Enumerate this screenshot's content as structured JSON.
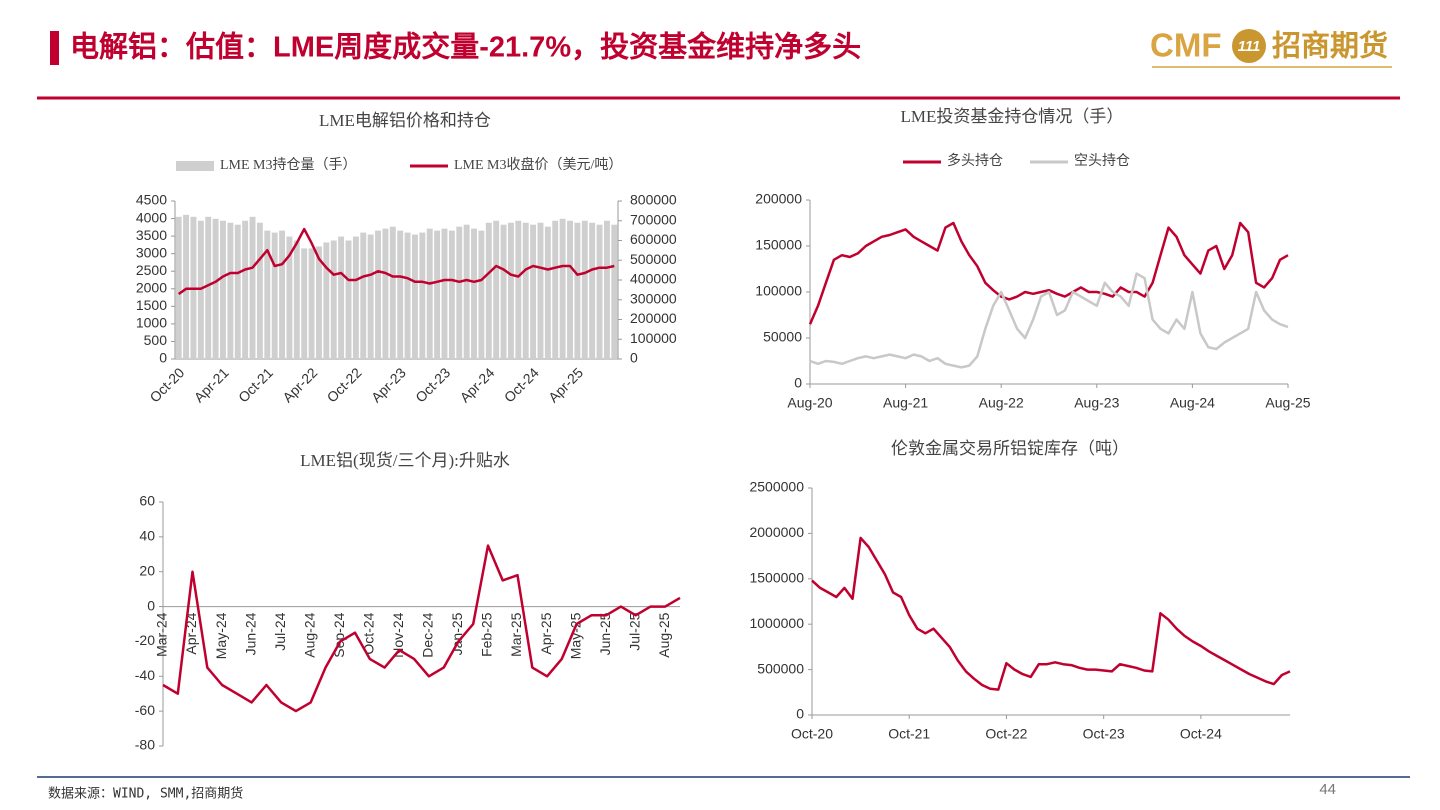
{
  "header": {
    "title": "电解铝：估值：LME周度成交量-21.7%，投资基金维持净多头",
    "logo_text": "CMF",
    "logo_mark": "111",
    "company": "招商期货"
  },
  "footer": {
    "source": "数据来源：WIND, SMM,招商期货",
    "page": "44"
  },
  "chart_data": [
    {
      "type": "combo",
      "title": "LME电解铝价格和持仓",
      "categories": [
        "Oct-20",
        null,
        null,
        null,
        null,
        null,
        "Apr-21",
        null,
        null,
        null,
        null,
        null,
        "Oct-21",
        null,
        null,
        null,
        null,
        null,
        "Apr-22",
        null,
        null,
        null,
        null,
        null,
        "Oct-22",
        null,
        null,
        null,
        null,
        null,
        "Apr-23",
        null,
        null,
        null,
        null,
        null,
        "Oct-23",
        null,
        null,
        null,
        null,
        null,
        "Apr-24",
        null,
        null,
        null,
        null,
        null,
        "Oct-24",
        null,
        null,
        null,
        null,
        null,
        "Apr-25",
        null,
        null,
        null,
        null,
        null
      ],
      "series": [
        {
          "name": "LME M3持仓量（手）",
          "type": "bar",
          "axis": "y2",
          "color": "#cfcfcf",
          "values": [
            720000,
            730000,
            720000,
            700000,
            720000,
            710000,
            700000,
            690000,
            680000,
            700000,
            720000,
            690000,
            650000,
            640000,
            650000,
            620000,
            600000,
            560000,
            560000,
            570000,
            590000,
            600000,
            620000,
            600000,
            620000,
            640000,
            630000,
            650000,
            660000,
            670000,
            650000,
            640000,
            630000,
            640000,
            660000,
            650000,
            660000,
            650000,
            670000,
            680000,
            660000,
            650000,
            690000,
            700000,
            680000,
            690000,
            700000,
            690000,
            680000,
            690000,
            670000,
            700000,
            710000,
            700000,
            690000,
            700000,
            690000,
            680000,
            700000,
            680000
          ]
        },
        {
          "name": "LME M3收盘价（美元/吨）",
          "type": "line",
          "color": "#c0002f",
          "values": [
            1850,
            2000,
            2000,
            2000,
            2100,
            2200,
            2350,
            2450,
            2450,
            2550,
            2600,
            2850,
            3100,
            2650,
            2700,
            2950,
            3300,
            3700,
            3300,
            2850,
            2600,
            2400,
            2450,
            2250,
            2250,
            2350,
            2400,
            2500,
            2450,
            2350,
            2350,
            2300,
            2200,
            2200,
            2150,
            2200,
            2250,
            2250,
            2200,
            2250,
            2200,
            2250,
            2450,
            2650,
            2550,
            2400,
            2350,
            2550,
            2650,
            2600,
            2550,
            2600,
            2650,
            2650,
            2400,
            2450,
            2550,
            2600,
            2600,
            2650
          ]
        }
      ],
      "ylim": [
        0,
        4500
      ],
      "yticks": [
        0,
        500,
        1000,
        1500,
        2000,
        2500,
        3000,
        3500,
        4000,
        4500
      ],
      "y2lim": [
        0,
        800000
      ],
      "y2ticks": [
        0,
        100000,
        200000,
        300000,
        400000,
        500000,
        600000,
        700000,
        800000
      ],
      "legend": "top"
    },
    {
      "type": "line",
      "title": "LME投资基金持仓情况（手）",
      "categories": [
        "Aug-20",
        null,
        null,
        null,
        null,
        null,
        null,
        null,
        null,
        null,
        null,
        null,
        "Aug-21",
        null,
        null,
        null,
        null,
        null,
        null,
        null,
        null,
        null,
        null,
        null,
        "Aug-22",
        null,
        null,
        null,
        null,
        null,
        null,
        null,
        null,
        null,
        null,
        null,
        "Aug-23",
        null,
        null,
        null,
        null,
        null,
        null,
        null,
        null,
        null,
        null,
        null,
        "Aug-24",
        null,
        null,
        null,
        null,
        null,
        null,
        null,
        null,
        null,
        null,
        null,
        "Aug-25"
      ],
      "series": [
        {
          "name": "多头持仓",
          "color": "#c0002f",
          "values": [
            65000,
            85000,
            110000,
            135000,
            140000,
            138000,
            142000,
            150000,
            155000,
            160000,
            162000,
            165000,
            168000,
            160000,
            155000,
            150000,
            145000,
            170000,
            175000,
            155000,
            140000,
            128000,
            110000,
            102000,
            95000,
            92000,
            95000,
            100000,
            98000,
            100000,
            102000,
            98000,
            95000,
            100000,
            105000,
            100000,
            100000,
            98000,
            95000,
            105000,
            100000,
            100000,
            95000,
            110000,
            140000,
            170000,
            160000,
            140000,
            130000,
            120000,
            145000,
            150000,
            125000,
            140000,
            175000,
            165000,
            110000,
            105000,
            115000,
            135000,
            140000
          ]
        },
        {
          "name": "空头持仓",
          "color": "#c8c8c8",
          "values": [
            25000,
            22000,
            25000,
            24000,
            22000,
            25000,
            28000,
            30000,
            28000,
            30000,
            32000,
            30000,
            28000,
            32000,
            30000,
            25000,
            28000,
            22000,
            20000,
            18000,
            20000,
            30000,
            60000,
            85000,
            100000,
            80000,
            60000,
            50000,
            70000,
            95000,
            100000,
            75000,
            80000,
            100000,
            95000,
            90000,
            85000,
            110000,
            100000,
            95000,
            85000,
            120000,
            115000,
            70000,
            60000,
            55000,
            70000,
            60000,
            100000,
            55000,
            40000,
            38000,
            45000,
            50000,
            55000,
            60000,
            100000,
            80000,
            70000,
            65000,
            62000
          ]
        }
      ],
      "ylim": [
        0,
        200000
      ],
      "yticks": [
        0,
        50000,
        100000,
        150000,
        200000
      ],
      "legend": "top"
    },
    {
      "type": "line",
      "title": "LME铝(现货/三个月):升贴水",
      "categories": [
        "Mar-24",
        null,
        "Apr-24",
        null,
        "May-24",
        null,
        "Jun-24",
        null,
        "Jul-24",
        null,
        "Aug-24",
        null,
        "Sep-24",
        null,
        "Oct-24",
        null,
        "Nov-24",
        null,
        "Dec-24",
        null,
        "Jan-25",
        null,
        "Feb-25",
        null,
        "Mar-25",
        null,
        "Apr-25",
        null,
        "May-25",
        null,
        "Jun-25",
        null,
        "Jul-25",
        null,
        "Aug-25",
        null
      ],
      "color": "#c0002f",
      "values": [
        -45,
        -50,
        20,
        -35,
        -45,
        -50,
        -55,
        -45,
        -55,
        -60,
        -55,
        -35,
        -20,
        -15,
        -30,
        -35,
        -25,
        -30,
        -40,
        -35,
        -20,
        -10,
        35,
        15,
        18,
        -35,
        -40,
        -30,
        -10,
        -5,
        -5,
        0,
        -5,
        0,
        0,
        5
      ],
      "ylim": [
        -80,
        60
      ],
      "yticks": [
        -80,
        -60,
        -40,
        -20,
        0,
        20,
        40,
        60
      ]
    },
    {
      "type": "line",
      "title": "伦敦金属交易所铝锭库存（吨）",
      "categories": [
        "Oct-20",
        null,
        null,
        null,
        null,
        null,
        null,
        null,
        null,
        null,
        null,
        null,
        "Oct-21",
        null,
        null,
        null,
        null,
        null,
        null,
        null,
        null,
        null,
        null,
        null,
        "Oct-22",
        null,
        null,
        null,
        null,
        null,
        null,
        null,
        null,
        null,
        null,
        null,
        "Oct-23",
        null,
        null,
        null,
        null,
        null,
        null,
        null,
        null,
        null,
        null,
        null,
        "Oct-24",
        null,
        null,
        null,
        null,
        null,
        null,
        null,
        null,
        null,
        null,
        null
      ],
      "color": "#c0002f",
      "values": [
        1480000,
        1400000,
        1350000,
        1300000,
        1400000,
        1280000,
        1950000,
        1850000,
        1700000,
        1550000,
        1350000,
        1300000,
        1100000,
        950000,
        900000,
        950000,
        850000,
        750000,
        600000,
        480000,
        400000,
        330000,
        290000,
        280000,
        570000,
        500000,
        450000,
        420000,
        560000,
        560000,
        580000,
        560000,
        550000,
        520000,
        500000,
        500000,
        490000,
        480000,
        560000,
        540000,
        520000,
        490000,
        480000,
        1120000,
        1050000,
        950000,
        870000,
        810000,
        760000,
        700000,
        650000,
        600000,
        550000,
        500000,
        450000,
        410000,
        370000,
        340000,
        440000,
        480000
      ],
      "ylim": [
        0,
        2500000
      ],
      "yticks": [
        0,
        500000,
        1000000,
        1500000,
        2000000,
        2500000
      ]
    }
  ]
}
